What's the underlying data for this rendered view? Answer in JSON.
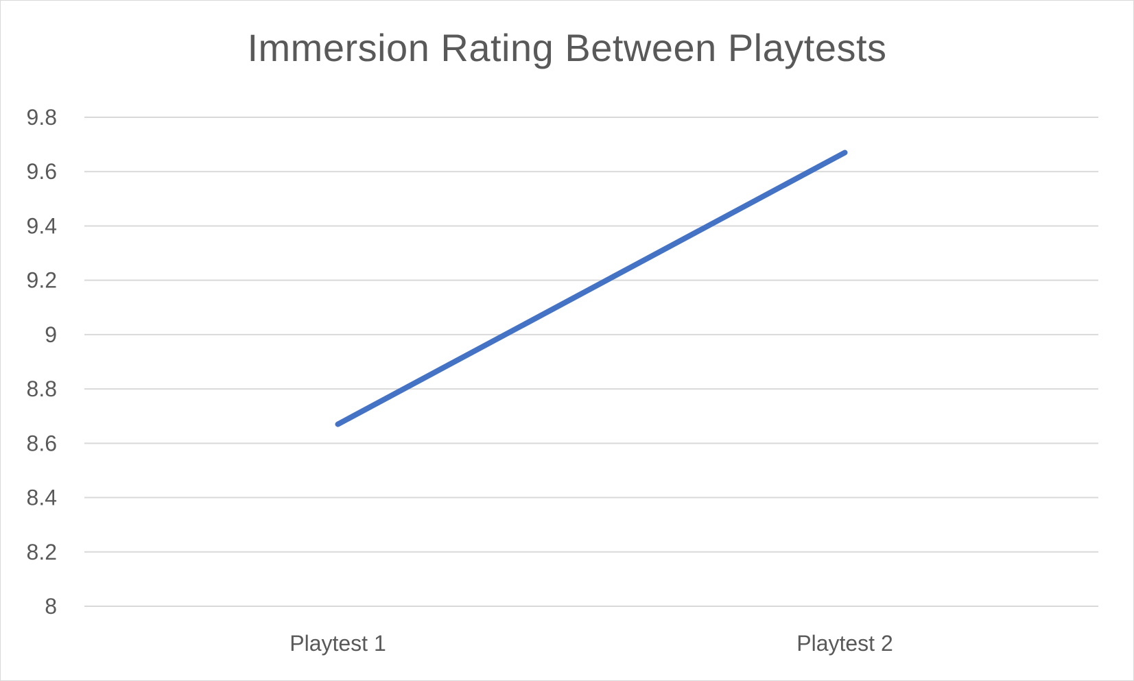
{
  "chart_data": {
    "type": "line",
    "title": "Immersion Rating Between Playtests",
    "xlabel": "",
    "ylabel": "",
    "categories": [
      "Playtest 1",
      "Playtest 2"
    ],
    "series": [
      {
        "values": [
          8.67,
          9.67
        ],
        "color": "#4472c4"
      }
    ],
    "ylim": [
      8,
      9.8
    ],
    "yticks": [
      8,
      8.2,
      8.4,
      8.6,
      8.8,
      9,
      9.2,
      9.4,
      9.6,
      9.8
    ],
    "ytick_labels": [
      "8",
      "8.2",
      "8.4",
      "8.6",
      "8.8",
      "9",
      "9.2",
      "9.4",
      "9.6",
      "9.8"
    ],
    "grid": true,
    "legend": "none",
    "gridline_color": "#d9d9d9",
    "text_color": "#595959"
  }
}
